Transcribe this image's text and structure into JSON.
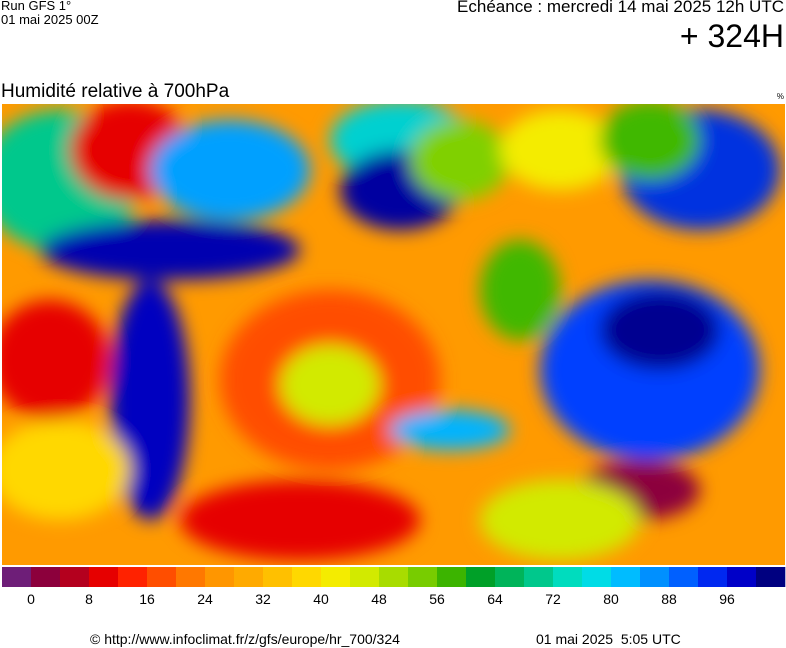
{
  "header": {
    "run": "Run GFS 1°",
    "run_date": "01 mai 2025 00Z",
    "echeance": "Echéance : mercredi 14 mai 2025 12h UTC",
    "lead": "+ 324H"
  },
  "map": {
    "title": "Humidité relative à 700hPa",
    "unit": "%"
  },
  "colorbar": {
    "lim": [
      -4,
      104
    ],
    "colors": [
      "#6e1e78",
      "#8c003c",
      "#b4001e",
      "#e60000",
      "#ff2200",
      "#ff4e00",
      "#ff7800",
      "#ff9600",
      "#ffaa00",
      "#ffc000",
      "#ffd800",
      "#f4ec00",
      "#d2ea00",
      "#a8dc00",
      "#78cc00",
      "#3cb400",
      "#00a028",
      "#00b45a",
      "#00c88c",
      "#00dcbe",
      "#00dce6",
      "#00bcff",
      "#0090ff",
      "#0060ff",
      "#0028f0",
      "#0000c8",
      "#000080"
    ],
    "ticks": [
      0,
      8,
      16,
      24,
      32,
      40,
      48,
      56,
      64,
      72,
      80,
      88,
      96
    ]
  },
  "footer": {
    "source": "© http://www.infoclimat.fr/z/gfs/europe/hr_700/324",
    "time": "01 mai 2025  5:05 UTC"
  }
}
